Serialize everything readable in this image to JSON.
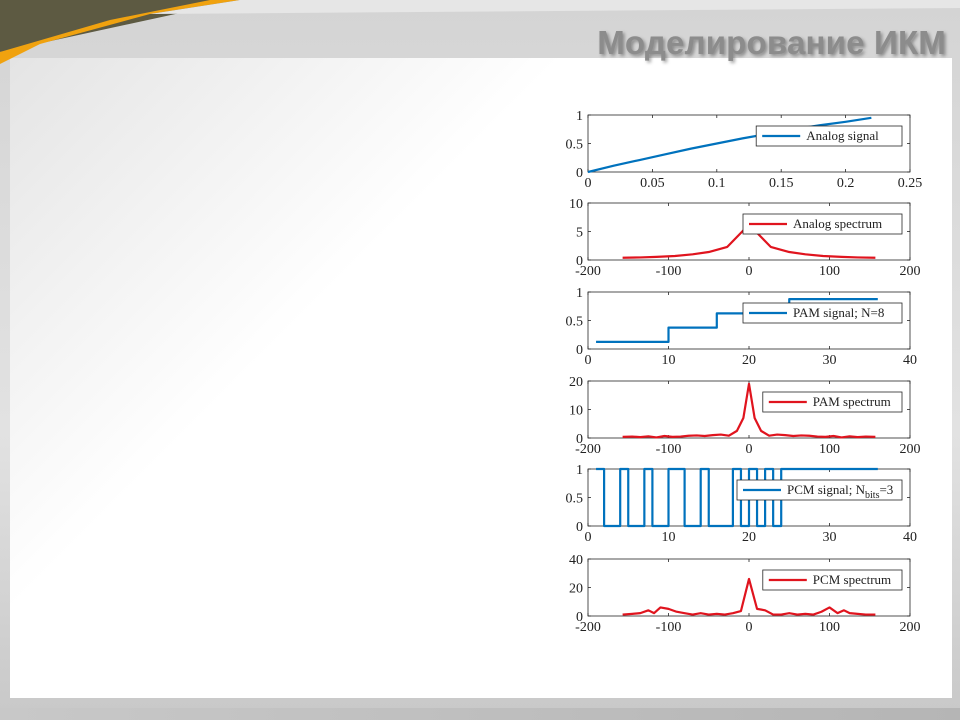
{
  "slide": {
    "title": "Моделирование ИКМ",
    "colors": {
      "accent_orange": "#f0a20f",
      "olive": "#5d5a42",
      "title_gray": "#8c8c8c"
    }
  },
  "chart_data": [
    {
      "type": "line",
      "legend": "Analog signal",
      "legend_placement": "right",
      "color": "#0072bd",
      "xlim": [
        0,
        0.25
      ],
      "ylim": [
        0,
        1
      ],
      "xticks": [
        "0",
        "0.05",
        "0.1",
        "0.15",
        "0.2",
        "0.25"
      ],
      "yticks": [
        "0",
        "0.5",
        "1"
      ],
      "x": [
        0,
        0.02,
        0.04,
        0.06,
        0.08,
        0.1,
        0.12,
        0.14,
        0.16,
        0.18,
        0.2,
        0.22
      ],
      "y": [
        0,
        0.11,
        0.21,
        0.31,
        0.41,
        0.5,
        0.59,
        0.67,
        0.75,
        0.82,
        0.88,
        0.95
      ]
    },
    {
      "type": "line",
      "legend": "Analog spectrum",
      "legend_placement": "right",
      "color": "#e0141e",
      "xlim": [
        -200,
        200
      ],
      "ylim": [
        0,
        10
      ],
      "xticks": [
        "-200",
        "-100",
        "0",
        "100",
        "200"
      ],
      "yticks": [
        "0",
        "5",
        "10"
      ],
      "x": [
        -157,
        -135,
        -115,
        -92,
        -70,
        -50,
        -27,
        -7,
        0,
        7,
        27,
        50,
        70,
        92,
        115,
        135,
        157
      ],
      "y": [
        0.4,
        0.45,
        0.55,
        0.7,
        1.0,
        1.4,
        2.3,
        5.2,
        6.4,
        5.2,
        2.3,
        1.4,
        1.0,
        0.7,
        0.55,
        0.45,
        0.4
      ]
    },
    {
      "type": "step",
      "legend": "PAM signal; N=8",
      "legend_placement": "right",
      "color": "#0072bd",
      "xlim": [
        0,
        40
      ],
      "ylim": [
        0,
        1
      ],
      "xticks": [
        "0",
        "10",
        "20",
        "30",
        "40"
      ],
      "yticks": [
        "0",
        "0.5",
        "1"
      ],
      "x": [
        1,
        10,
        16,
        25,
        36
      ],
      "y": [
        0.125,
        0.375,
        0.625,
        0.875,
        0.875
      ]
    },
    {
      "type": "line",
      "legend": "PAM spectrum",
      "legend_placement": "right",
      "color": "#e0141e",
      "xlim": [
        -200,
        200
      ],
      "ylim": [
        0,
        20
      ],
      "xticks": [
        "-200",
        "-100",
        "0",
        "100",
        "200"
      ],
      "yticks": [
        "0",
        "10",
        "20"
      ],
      "x": [
        -157,
        -145,
        -135,
        -125,
        -115,
        -105,
        -95,
        -85,
        -75,
        -65,
        -55,
        -45,
        -35,
        -25,
        -15,
        -7,
        0,
        7,
        15,
        25,
        35,
        45,
        55,
        65,
        75,
        85,
        95,
        105,
        115,
        125,
        135,
        145,
        157
      ],
      "y": [
        0.4,
        0.5,
        0.3,
        0.6,
        0.2,
        0.7,
        0.4,
        0.5,
        0.8,
        0.9,
        0.7,
        1.0,
        1.2,
        0.8,
        2.5,
        7.0,
        19.0,
        7.0,
        2.5,
        0.8,
        1.2,
        1.0,
        0.7,
        0.9,
        0.8,
        0.5,
        0.4,
        0.7,
        0.2,
        0.6,
        0.3,
        0.5,
        0.4
      ]
    },
    {
      "type": "step",
      "legend": "PCM signal; N",
      "legend_sub": "bits",
      "legend_suffix": "=3",
      "legend_placement": "right",
      "color": "#0072bd",
      "xlim": [
        0,
        40
      ],
      "ylim": [
        0,
        1
      ],
      "xticks": [
        "0",
        "10",
        "20",
        "30",
        "40"
      ],
      "yticks": [
        "0",
        "0.5",
        "1"
      ],
      "x": [
        1,
        2,
        4,
        5,
        7,
        8,
        10,
        12,
        14,
        15,
        18,
        19,
        20,
        21,
        22,
        23,
        24,
        25,
        36
      ],
      "y": [
        1,
        0,
        1,
        0,
        1,
        0,
        1,
        0,
        1,
        0,
        1,
        0,
        1,
        0,
        1,
        0,
        1,
        1,
        1
      ]
    },
    {
      "type": "line",
      "legend": "PCM spectrum",
      "legend_placement": "right",
      "color": "#e0141e",
      "xlim": [
        -200,
        200
      ],
      "ylim": [
        0,
        40
      ],
      "xticks": [
        "-200",
        "-100",
        "0",
        "100",
        "200"
      ],
      "yticks": [
        "0",
        "20",
        "40"
      ],
      "x": [
        -157,
        -145,
        -135,
        -125,
        -118,
        -110,
        -100,
        -90,
        -80,
        -70,
        -60,
        -50,
        -40,
        -30,
        -20,
        -10,
        0,
        10,
        20,
        30,
        40,
        50,
        60,
        70,
        80,
        90,
        100,
        110,
        118,
        125,
        135,
        145,
        157
      ],
      "y": [
        1,
        1.5,
        2,
        4,
        2,
        6,
        5,
        3,
        2,
        1,
        2,
        1,
        1.5,
        1,
        2,
        3.5,
        26,
        5,
        4,
        1,
        1,
        2,
        1,
        1.5,
        1,
        3,
        6,
        2,
        4,
        2,
        1.5,
        1,
        1
      ]
    }
  ]
}
